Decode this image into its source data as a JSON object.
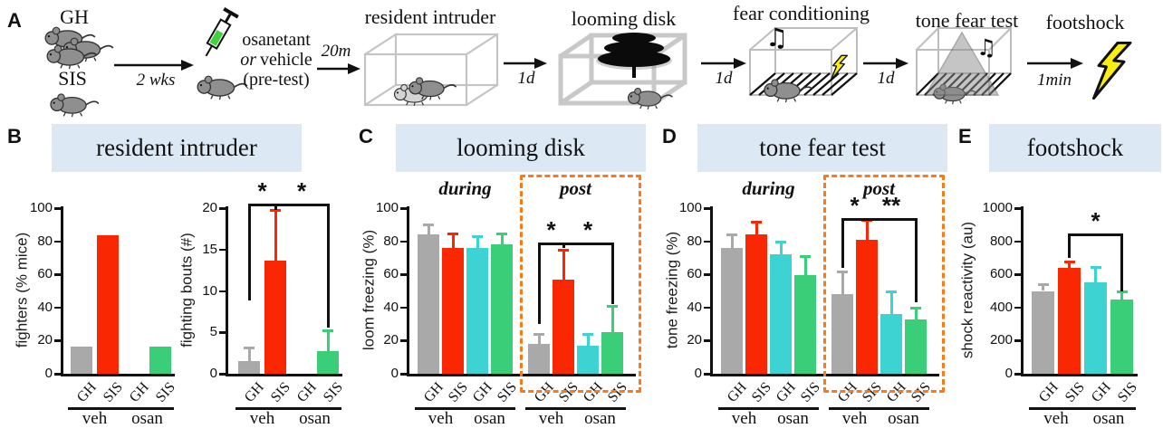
{
  "colors": {
    "gray": "#a9a9a9",
    "red": "#fa2703",
    "cyan": "#3ed3d3",
    "green": "#3bce79",
    "header_bg": "#dce9f5",
    "box_orange": "#f57b1c",
    "axis": "#111111",
    "bolt_yellow": "#f8ee11"
  },
  "icons": {
    "music_note": "♫"
  },
  "panel_a": {
    "label": "A",
    "gh_label": "GH",
    "sis_label": "SIS",
    "arrows": {
      "weeks": "2 wks",
      "pre": "20m",
      "a1": "1d",
      "a2": "1d",
      "a3": "1d",
      "a4": "1min"
    },
    "injection": {
      "line1": "osanetant",
      "line2_italic": "or",
      "line2_rest": "vehicle",
      "line3": "(pre-test)"
    },
    "stage_titles": [
      "resident intruder",
      "looming disk",
      "fear conditioning",
      "tone fear test",
      "footshock"
    ]
  },
  "panels": [
    {
      "label": "B",
      "title": "resident intruder"
    },
    {
      "label": "C",
      "title": "looming disk"
    },
    {
      "label": "D",
      "title": "tone fear test"
    },
    {
      "label": "E",
      "title": "footshock"
    }
  ],
  "chart_data": [
    {
      "id": "fighters",
      "panel": "B",
      "type": "bar",
      "ylabel": "fighters (% mice)",
      "ylim": [
        0,
        100
      ],
      "yticks": [
        0,
        20,
        40,
        60,
        80,
        100
      ],
      "categories": [
        "GH",
        "SIS",
        "GH",
        "SIS"
      ],
      "values": [
        16.5,
        83.5,
        0,
        16.5
      ],
      "errors": [
        0,
        0,
        0,
        0
      ],
      "bar_colors": [
        "gray",
        "red",
        "cyan",
        "green"
      ],
      "group_labels": [
        {
          "label": "veh",
          "span": [
            0,
            1
          ]
        },
        {
          "label": "osan",
          "span": [
            2,
            3
          ]
        }
      ],
      "sections": [],
      "sig": []
    },
    {
      "id": "fighting_bouts",
      "panel": "B",
      "type": "bar",
      "ylabel": "fighting bouts (#)",
      "ylim": [
        0,
        20
      ],
      "yticks": [
        0,
        5,
        10,
        15,
        20
      ],
      "categories": [
        "GH",
        "SIS",
        "GH",
        "SIS"
      ],
      "values": [
        1.5,
        13.7,
        0,
        2.7
      ],
      "errors": [
        1.7,
        6.1,
        0,
        2.6
      ],
      "bar_colors": [
        "gray",
        "red",
        "cyan",
        "green"
      ],
      "group_labels": [
        {
          "label": "veh",
          "span": [
            0,
            1
          ]
        },
        {
          "label": "osan",
          "span": [
            2,
            3
          ]
        }
      ],
      "sections": [],
      "sig": [
        {
          "a": 0,
          "b": 1,
          "label": "*",
          "top": 20.5,
          "a_drop": 8.8,
          "b_drop": 19.8
        },
        {
          "a": 1,
          "b": 3,
          "label": "*",
          "top": 20.5,
          "a_drop": 19.8,
          "b_drop": 5.6
        }
      ]
    },
    {
      "id": "loom_freezing",
      "panel": "C",
      "type": "bar",
      "ylabel": "loom freezing (%)",
      "ylim": [
        0,
        100
      ],
      "yticks": [
        0,
        20,
        40,
        60,
        80,
        100
      ],
      "categories": [
        "GH",
        "SIS",
        "GH",
        "SIS",
        "GH",
        "SIS",
        "GH",
        "SIS"
      ],
      "values": [
        84,
        76,
        76,
        78,
        18,
        57,
        17,
        25
      ],
      "errors": [
        6,
        9,
        7,
        7,
        6,
        18,
        7,
        16
      ],
      "bar_colors": [
        "gray",
        "red",
        "cyan",
        "green",
        "gray",
        "red",
        "cyan",
        "green"
      ],
      "group_labels": [
        {
          "label": "veh",
          "span": [
            0,
            1
          ]
        },
        {
          "label": "osan",
          "span": [
            2,
            3
          ]
        },
        {
          "label": "veh",
          "span": [
            4,
            5
          ]
        },
        {
          "label": "osan",
          "span": [
            6,
            7
          ]
        }
      ],
      "sections": [
        {
          "label": "during",
          "span": [
            0,
            3
          ],
          "boxed": false
        },
        {
          "label": "post",
          "span": [
            4,
            7
          ],
          "boxed": true
        }
      ],
      "sig": [
        {
          "a": 4,
          "b": 5,
          "label": "*",
          "top": 79,
          "a_drop": 30,
          "b_drop": 76
        },
        {
          "a": 5,
          "b": 7,
          "label": "*",
          "top": 79,
          "a_drop": 76,
          "b_drop": 42
        }
      ]
    },
    {
      "id": "tone_freezing",
      "panel": "D",
      "type": "bar",
      "ylabel": "tone freezing (%)",
      "ylim": [
        0,
        100
      ],
      "yticks": [
        0,
        20,
        40,
        60,
        80,
        100
      ],
      "categories": [
        "GH",
        "SIS",
        "GH",
        "SIS",
        "GH",
        "SIS",
        "GH",
        "SIS"
      ],
      "values": [
        76,
        84,
        72,
        59.5,
        48,
        81,
        36,
        33
      ],
      "errors": [
        8,
        8,
        8,
        11.5,
        14,
        12,
        14,
        7
      ],
      "bar_colors": [
        "gray",
        "red",
        "cyan",
        "green",
        "gray",
        "red",
        "cyan",
        "green"
      ],
      "group_labels": [
        {
          "label": "veh",
          "span": [
            0,
            1
          ]
        },
        {
          "label": "osan",
          "span": [
            2,
            3
          ]
        },
        {
          "label": "veh",
          "span": [
            4,
            5
          ]
        },
        {
          "label": "osan",
          "span": [
            6,
            7
          ]
        }
      ],
      "sections": [
        {
          "label": "during",
          "span": [
            0,
            3
          ],
          "boxed": false
        },
        {
          "label": "post",
          "span": [
            4,
            7
          ],
          "boxed": true
        }
      ],
      "sig": [
        {
          "a": 4,
          "b": 5,
          "label": "*",
          "top": 94,
          "a_drop": 64,
          "b_drop": 93
        },
        {
          "a": 5,
          "b": 7,
          "label": "**",
          "top": 94,
          "a_drop": 93,
          "b_drop": 43
        }
      ]
    },
    {
      "id": "shock_reactivity",
      "panel": "E",
      "type": "bar",
      "ylabel": "shock reactivity (au)",
      "ylim": [
        0,
        1000
      ],
      "yticks": [
        0,
        200,
        400,
        600,
        800,
        1000
      ],
      "categories": [
        "GH",
        "SIS",
        "GH",
        "SIS"
      ],
      "values": [
        500,
        640,
        550,
        450
      ],
      "errors": [
        40,
        40,
        95,
        50
      ],
      "bar_colors": [
        "gray",
        "red",
        "cyan",
        "green"
      ],
      "group_labels": [
        {
          "label": "veh",
          "span": [
            0,
            1
          ]
        },
        {
          "label": "osan",
          "span": [
            2,
            3
          ]
        }
      ],
      "sections": [],
      "sig": [
        {
          "a": 1,
          "b": 3,
          "label": "*",
          "top": 850,
          "a_drop": 700,
          "b_drop": 500
        }
      ]
    }
  ]
}
